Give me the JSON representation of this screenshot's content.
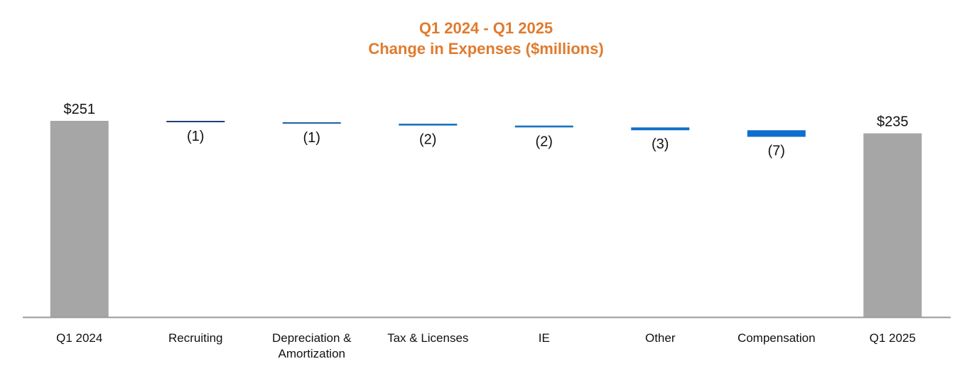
{
  "title": "Q1 2024 - Q1 2025",
  "subtitle": "Change in Expenses ($millions)",
  "colors": {
    "title": "#e07b2e",
    "total_bar": "#a6a6a6",
    "axis": "#999999",
    "decrease_shades": [
      "#1f3f7a",
      "#1f5ea8",
      "#1a72c2",
      "#1a72c2",
      "#0f6fc8",
      "#0f6fcf"
    ]
  },
  "chart_data": {
    "type": "bar",
    "subtype": "waterfall",
    "title": "Q1 2024 - Q1 2025",
    "subtitle": "Change in Expenses ($millions)",
    "categories": [
      "Q1 2024",
      "Recruiting",
      "Depreciation & Amortization",
      "Tax & Licenses",
      "IE",
      "Other",
      "Compensation",
      "Q1 2025"
    ],
    "category_lines": [
      [
        "Q1 2024"
      ],
      [
        "Recruiting"
      ],
      [
        "Depreciation &",
        "Amortization"
      ],
      [
        "Tax & Licenses"
      ],
      [
        "IE"
      ],
      [
        "Other"
      ],
      [
        "Compensation"
      ],
      [
        "Q1 2025"
      ]
    ],
    "values": [
      251,
      -1,
      -1,
      -2,
      -2,
      -3,
      -7,
      235
    ],
    "kinds": [
      "total",
      "delta",
      "delta",
      "delta",
      "delta",
      "delta",
      "delta",
      "total"
    ],
    "data_labels": [
      "$251",
      "(1)",
      "(1)",
      "(2)",
      "(2)",
      "(3)",
      "(7)",
      "$235"
    ],
    "ylim": [
      0,
      251
    ],
    "grid": false,
    "legend": "none"
  }
}
